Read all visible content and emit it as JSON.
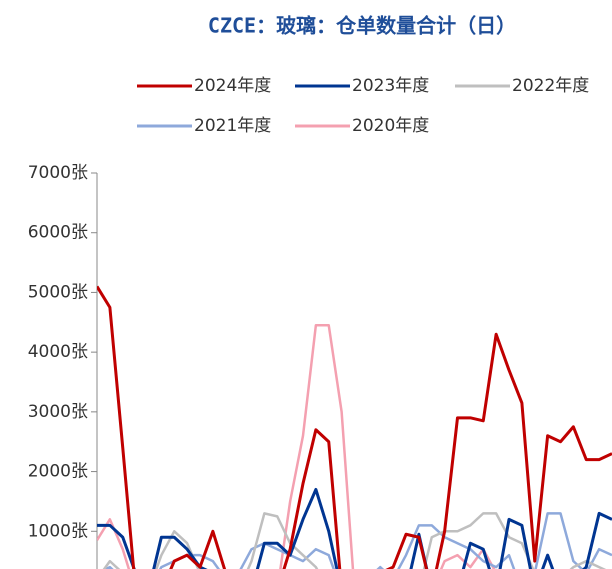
{
  "chart_data": {
    "type": "line",
    "title": "CZCE：玻璃：仓单数量合计（日）",
    "categories": [
      null,
      null,
      null,
      null,
      null,
      null,
      null,
      null,
      null,
      null,
      null,
      null,
      null,
      null,
      null,
      null,
      null,
      null,
      null,
      null,
      null,
      null,
      null,
      null,
      null,
      null,
      null,
      null,
      null,
      null,
      null,
      null,
      null,
      null,
      null,
      null,
      null,
      null,
      null,
      null,
      null
    ],
    "series": [
      {
        "name": "2024年度",
        "color": "#c00000",
        "values": [
          5100,
          4750,
          2400,
          0,
          0,
          0,
          500,
          600,
          400,
          1000,
          300,
          0,
          0,
          0,
          0,
          700,
          1800,
          2700,
          2500,
          0,
          0,
          200,
          300,
          400,
          950,
          900,
          0,
          1000,
          2900,
          2900,
          2850,
          4300,
          3700,
          3150,
          500,
          2600,
          2500,
          2750,
          2200,
          2200,
          2300
        ]
      },
      {
        "name": "2023年度",
        "color": "#003591",
        "values": [
          1100,
          1100,
          900,
          300,
          0,
          900,
          900,
          700,
          400,
          300,
          0,
          0,
          0,
          800,
          800,
          600,
          1200,
          1700,
          1000,
          0,
          0,
          0,
          100,
          200,
          0,
          950,
          0,
          0,
          0,
          800,
          700,
          0,
          1200,
          1100,
          0,
          600,
          0,
          200,
          400,
          1300,
          1200
        ]
      },
      {
        "name": "2022年度",
        "color": "#bfbfbf",
        "values": [
          200,
          500,
          300,
          0,
          0,
          600,
          1000,
          800,
          300,
          200,
          0,
          0,
          500,
          1300,
          1250,
          800,
          600,
          400,
          0,
          0,
          300,
          300,
          300,
          0,
          0,
          0,
          900,
          1000,
          1000,
          1100,
          1300,
          1300,
          900,
          800,
          300,
          300,
          200,
          400,
          500,
          400,
          300
        ]
      },
      {
        "name": "2021年度",
        "color": "#8ea9db",
        "values": [
          300,
          400,
          200,
          100,
          0,
          400,
          500,
          600,
          600,
          500,
          200,
          300,
          700,
          800,
          700,
          600,
          500,
          700,
          600,
          0,
          300,
          200,
          400,
          200,
          600,
          1100,
          1100,
          900,
          800,
          700,
          500,
          400,
          600,
          0,
          300,
          1300,
          1300,
          500,
          300,
          700,
          600
        ]
      },
      {
        "name": "2020年度",
        "color": "#f4a0b0",
        "values": [
          850,
          1200,
          700,
          0,
          0,
          0,
          200,
          0,
          0,
          0,
          0,
          0,
          0,
          0,
          0,
          1500,
          2600,
          4450,
          4450,
          3000,
          0,
          0,
          200,
          300,
          0,
          0,
          0,
          500,
          600,
          400,
          700,
          300,
          0,
          0,
          0,
          0,
          0,
          0,
          0,
          0,
          0
        ]
      }
    ],
    "ylim": [
      0,
      7000
    ],
    "yticks": [
      {
        "value": 1000,
        "label": "1000张"
      },
      {
        "value": 2000,
        "label": "2000张"
      },
      {
        "value": 3000,
        "label": "3000张"
      },
      {
        "value": 4000,
        "label": "4000张"
      },
      {
        "value": 5000,
        "label": "5000张"
      },
      {
        "value": 6000,
        "label": "6000张"
      },
      {
        "value": 7000,
        "label": "7000张"
      }
    ],
    "legend": "top"
  }
}
